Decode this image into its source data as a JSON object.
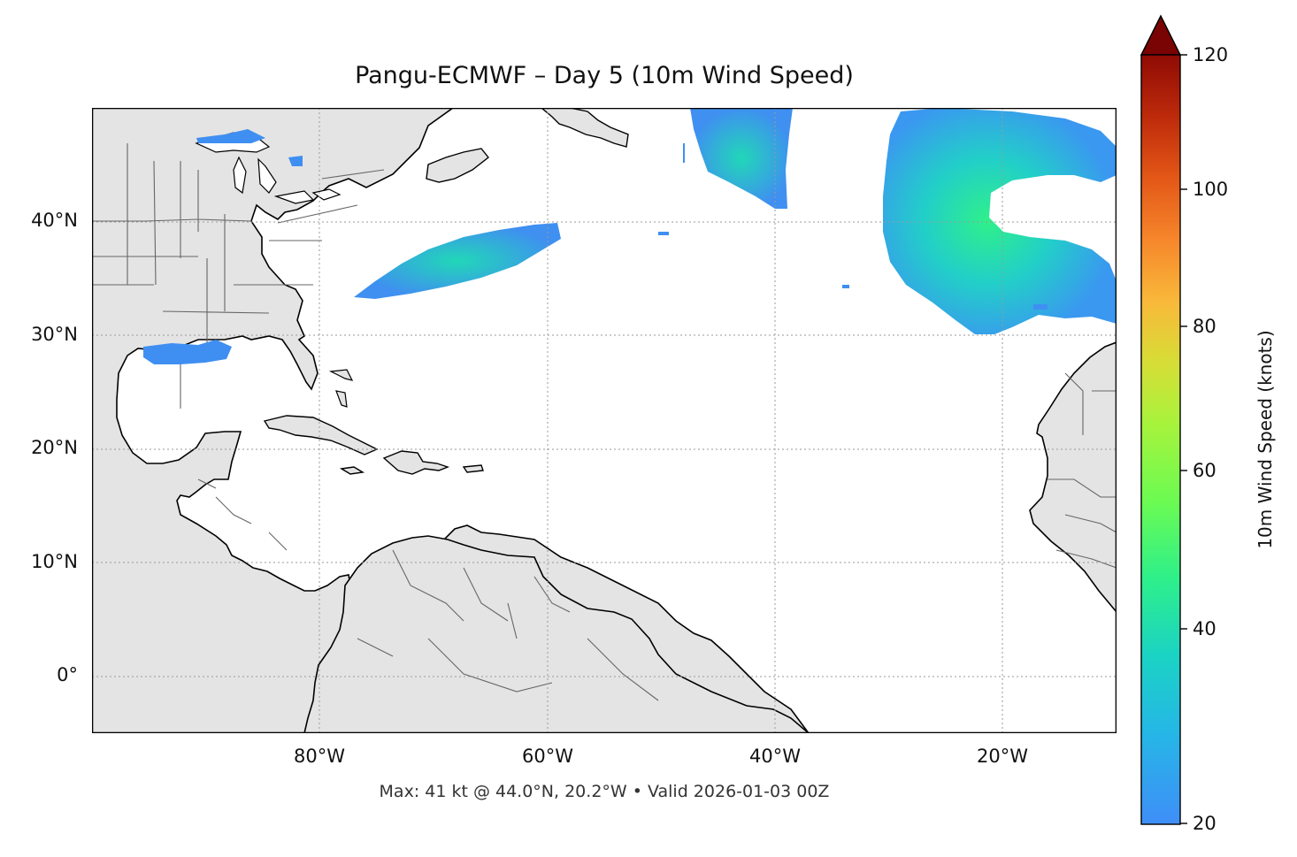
{
  "title": "Pangu-ECMWF – Day 5 (10m Wind Speed)",
  "footer": "Max: 41 kt @ 44.0°N, 20.2°W • Valid 2026-01-03 00Z",
  "map": {
    "lat_ticks": [
      "40°N",
      "30°N",
      "20°N",
      "10°N",
      "0°"
    ],
    "lon_ticks": [
      "80°W",
      "60°W",
      "40°W",
      "20°W"
    ],
    "extent": {
      "lon_min": -100,
      "lon_max": -10,
      "lat_min": -5,
      "lat_max": 50
    },
    "land_color": "#e4e4e4",
    "ocean_color": "#ffffff",
    "gridlines": true
  },
  "colorbar": {
    "label": "10m Wind Speed (knots)",
    "ticks": [
      "120",
      "100",
      "80",
      "60",
      "40",
      "20"
    ],
    "range": [
      20,
      120
    ],
    "extend": "max",
    "colormap": "turbo"
  },
  "wind_max": {
    "value_kt": 41,
    "lat": 44.0,
    "lon": -20.2
  }
}
